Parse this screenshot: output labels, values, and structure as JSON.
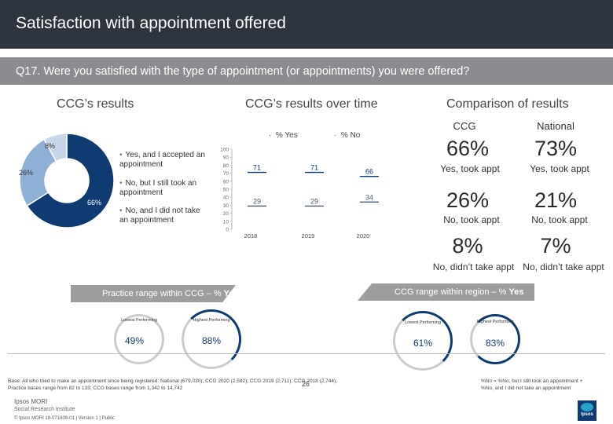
{
  "title": "Satisfaction with appointment offered",
  "question": "Q17. Were you satisfied with the type of appointment (or appointments) you were offered?",
  "sections": {
    "ccg_results": "CCG’s results",
    "over_time": "CCG’s results over time",
    "comparison": "Comparison of results"
  },
  "donut": {
    "legend": [
      "Yes, and I accepted an appointment",
      "No, but I still took an appointment",
      "No, and I did not take an appointment"
    ],
    "labels": [
      "66%",
      "26%",
      "8%"
    ]
  },
  "line_legend": {
    "yes": "% Yes",
    "no": "% No"
  },
  "comparison": {
    "col_ccg": "CCG",
    "col_national": "National",
    "rows": [
      {
        "ccg": "66%",
        "national": "73%",
        "ccg_label": "Yes, took appt",
        "national_label": "Yes, took appt"
      },
      {
        "ccg": "26%",
        "national": "21%",
        "ccg_label": "No, took appt",
        "national_label": "No, took appt"
      },
      {
        "ccg": "8%",
        "national": "7%",
        "ccg_label": "No, didn’t take appt",
        "national_label": "No, didn’t take appt"
      }
    ]
  },
  "practice_range": {
    "title": "Practice range within CCG – % ",
    "title_bold": "Yes",
    "lowest_label": "Lowest Performing",
    "highest_label": "Highest Performing",
    "lowest": "49%",
    "highest": "88%"
  },
  "region_range": {
    "title": "CCG range within region – % ",
    "title_bold": "Yes",
    "lowest_label": "Lowest Performing",
    "highest_label": "Highest Performing",
    "lowest": "61%",
    "highest": "83%"
  },
  "footer": {
    "base": "Base: All who tried to make an appointment since being registered: National (679,030); CCG 2020 (2,582); CCG 2019 (2,711); CCG 2018 (2,744);",
    "practice_bases": "Practice bases range from 82 to 133; CCG bases range from 1,342 to 14,742",
    "note1": "%No = %No, but I still took an appointment +",
    "note2": "%No, and I did not take an appointment",
    "page": "26",
    "brand1": "Ipsos MORI",
    "brand2": "Social Research Institute",
    "copyright": "© Ipsos MORI      19-071809-01 | Version 1 | Public"
  },
  "colors": {
    "yes_series": "#0f3b72",
    "no_series": "#4a5a6e",
    "donut": [
      "#0f3b72",
      "#8fb0d6",
      "#c8d6ea"
    ]
  },
  "chart_data": [
    {
      "type": "pie",
      "categories": [
        "Yes, and I accepted an appointment",
        "No, but I still took an appointment",
        "No, and I did not take an appointment"
      ],
      "values": [
        66,
        26,
        8
      ]
    },
    {
      "type": "line",
      "x": [
        "2018",
        "2019",
        "2020"
      ],
      "series": [
        {
          "name": "% Yes",
          "values": [
            71,
            71,
            66
          ]
        },
        {
          "name": "% No",
          "values": [
            29,
            29,
            34
          ]
        }
      ],
      "ylim": [
        0,
        100
      ],
      "yticks": [
        0,
        10,
        20,
        30,
        40,
        50,
        60,
        70,
        80,
        90,
        100
      ]
    }
  ]
}
